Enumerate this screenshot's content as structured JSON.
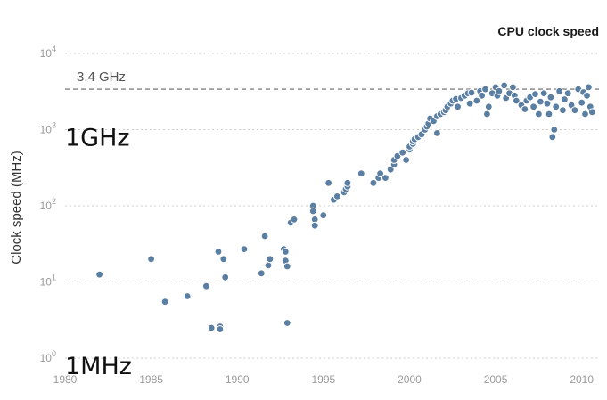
{
  "chart_data": {
    "type": "scatter",
    "title": "CPU clock speed",
    "ylabel": "Clock speed (MHz)",
    "xlabel": "",
    "yscale": "log",
    "xlim": [
      1980,
      2011
    ],
    "ylim": [
      1,
      10000
    ],
    "x_ticks": [
      "1980",
      "1985",
      "1990",
      "1995",
      "2000",
      "2005",
      "2010"
    ],
    "y_ticks": [
      {
        "value": 1,
        "base": "10",
        "exp": "0"
      },
      {
        "value": 10,
        "base": "10",
        "exp": "1"
      },
      {
        "value": 100,
        "base": "10",
        "exp": "2"
      },
      {
        "value": 1000,
        "base": "10",
        "exp": "3"
      },
      {
        "value": 10000,
        "base": "10",
        "exp": "4"
      }
    ],
    "grid": true,
    "reference_line": {
      "value": 3400,
      "label": "3.4 GHz"
    },
    "annotations": [
      {
        "text": "1GHz",
        "x": 1980,
        "y": 1000
      },
      {
        "text": "1MHz",
        "x": 1980,
        "y": 1
      }
    ],
    "color": "#5b7ea3",
    "points": [
      [
        1982.0,
        12.5
      ],
      [
        1985.0,
        20
      ],
      [
        1985.8,
        5.5
      ],
      [
        1987.1,
        6.5
      ],
      [
        1988.2,
        8.8
      ],
      [
        1988.5,
        2.5
      ],
      [
        1988.9,
        25
      ],
      [
        1989.0,
        2.6
      ],
      [
        1989.0,
        2.4
      ],
      [
        1989.2,
        20
      ],
      [
        1989.3,
        11.5
      ],
      [
        1990.4,
        27
      ],
      [
        1991.4,
        13
      ],
      [
        1991.6,
        40
      ],
      [
        1991.8,
        16.5
      ],
      [
        1991.9,
        20
      ],
      [
        1992.7,
        27
      ],
      [
        1992.8,
        25
      ],
      [
        1992.8,
        19
      ],
      [
        1992.9,
        16
      ],
      [
        1992.9,
        2.9
      ],
      [
        1993.1,
        60
      ],
      [
        1993.3,
        66
      ],
      [
        1994.4,
        100
      ],
      [
        1994.4,
        85
      ],
      [
        1994.5,
        66
      ],
      [
        1994.5,
        55
      ],
      [
        1995.0,
        75
      ],
      [
        1995.3,
        200
      ],
      [
        1995.6,
        120
      ],
      [
        1995.8,
        133
      ],
      [
        1996.2,
        150
      ],
      [
        1996.3,
        166
      ],
      [
        1996.4,
        180
      ],
      [
        1996.4,
        200
      ],
      [
        1997.2,
        266
      ],
      [
        1997.9,
        200
      ],
      [
        1998.2,
        233
      ],
      [
        1998.3,
        266
      ],
      [
        1998.6,
        233
      ],
      [
        1998.9,
        300
      ],
      [
        1999.1,
        350
      ],
      [
        1999.1,
        400
      ],
      [
        1999.3,
        450
      ],
      [
        1999.6,
        500
      ],
      [
        1999.8,
        400
      ],
      [
        2000.0,
        550
      ],
      [
        2000.0,
        600
      ],
      [
        2000.2,
        650
      ],
      [
        2000.2,
        700
      ],
      [
        2000.3,
        750
      ],
      [
        2000.5,
        800
      ],
      [
        2000.7,
        866
      ],
      [
        2000.9,
        1000
      ],
      [
        2001.0,
        1100
      ],
      [
        2001.1,
        1200
      ],
      [
        2001.2,
        1400
      ],
      [
        2001.4,
        1300
      ],
      [
        2001.6,
        1500
      ],
      [
        2001.6,
        900
      ],
      [
        2001.8,
        1600
      ],
      [
        2002.0,
        1700
      ],
      [
        2002.1,
        1800
      ],
      [
        2002.2,
        2000
      ],
      [
        2002.4,
        2200
      ],
      [
        2002.5,
        2400
      ],
      [
        2002.7,
        2530
      ],
      [
        2002.8,
        2000
      ],
      [
        2003.0,
        2600
      ],
      [
        2003.2,
        2800
      ],
      [
        2003.4,
        3000
      ],
      [
        2003.5,
        2200
      ],
      [
        2003.6,
        3060
      ],
      [
        2003.9,
        2400
      ],
      [
        2004.1,
        3200
      ],
      [
        2004.2,
        2800
      ],
      [
        2004.4,
        3400
      ],
      [
        2004.5,
        1600
      ],
      [
        2004.6,
        2000
      ],
      [
        2004.8,
        3000
      ],
      [
        2005.0,
        3600
      ],
      [
        2005.1,
        2800
      ],
      [
        2005.2,
        3200
      ],
      [
        2005.5,
        3800
      ],
      [
        2005.6,
        2600
      ],
      [
        2005.8,
        3000
      ],
      [
        2006.0,
        3600
      ],
      [
        2006.1,
        2800
      ],
      [
        2006.2,
        2400
      ],
      [
        2006.5,
        2100
      ],
      [
        2006.7,
        1860
      ],
      [
        2006.8,
        2400
      ],
      [
        2007.0,
        2660
      ],
      [
        2007.2,
        2000
      ],
      [
        2007.3,
        2930
      ],
      [
        2007.5,
        1600
      ],
      [
        2007.6,
        2330
      ],
      [
        2007.8,
        3000
      ],
      [
        2008.0,
        2200
      ],
      [
        2008.1,
        1600
      ],
      [
        2008.2,
        2660
      ],
      [
        2008.3,
        800
      ],
      [
        2008.4,
        1000
      ],
      [
        2008.5,
        2000
      ],
      [
        2008.7,
        3200
      ],
      [
        2008.9,
        1800
      ],
      [
        2009.0,
        2500
      ],
      [
        2009.2,
        3000
      ],
      [
        2009.4,
        2100
      ],
      [
        2009.6,
        1800
      ],
      [
        2009.8,
        3400
      ],
      [
        2010.0,
        2260
      ],
      [
        2010.1,
        3100
      ],
      [
        2010.2,
        1600
      ],
      [
        2010.3,
        2800
      ],
      [
        2010.4,
        3600
      ],
      [
        2010.5,
        2000
      ],
      [
        2010.6,
        1700
      ]
    ]
  }
}
